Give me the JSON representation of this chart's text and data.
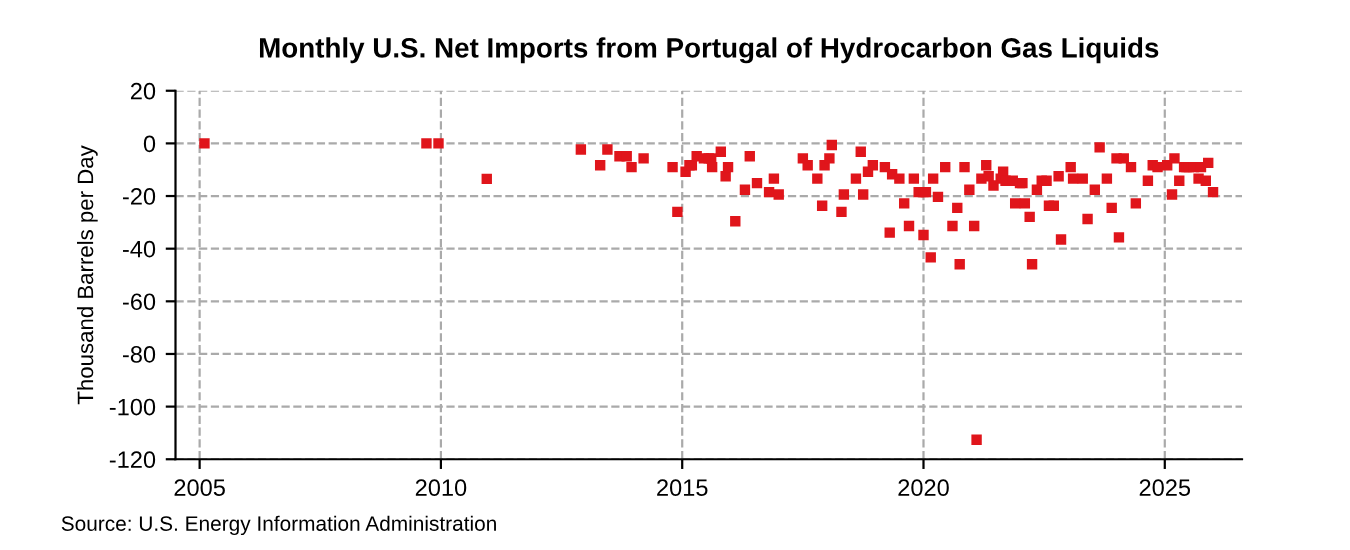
{
  "chart_data": {
    "type": "scatter",
    "title": "Monthly U.S. Net Imports from Portugal of Hydrocarbon Gas Liquids",
    "ylabel": "Thousand Barrels per Day",
    "annotations": [
      "Source: U.S. Energy Information Administration"
    ],
    "x": [
      2005.1,
      2009.7,
      2009.95,
      2010.95,
      2012.9,
      2013.3,
      2013.45,
      2013.7,
      2013.85,
      2013.95,
      2014.2,
      2014.8,
      2014.9,
      2015.07,
      2015.15,
      2015.2,
      2015.3,
      2015.45,
      2015.55,
      2015.6,
      2015.62,
      2015.8,
      2015.9,
      2015.95,
      2016.1,
      2016.3,
      2016.4,
      2016.55,
      2016.8,
      2016.9,
      2017.0,
      2017.5,
      2017.6,
      2017.8,
      2017.9,
      2017.95,
      2018.05,
      2018.1,
      2018.3,
      2018.35,
      2018.6,
      2018.7,
      2018.75,
      2018.85,
      2018.95,
      2019.2,
      2019.3,
      2019.35,
      2019.5,
      2019.6,
      2019.7,
      2019.8,
      2019.9,
      2020.0,
      2020.05,
      2020.0,
      2020.15,
      2020.2,
      2020.3,
      2020.45,
      2020.6,
      2020.7,
      2020.75,
      2020.85,
      2020.95,
      2021.05,
      2021.1,
      2021.2,
      2021.3,
      2021.35,
      2021.45,
      2021.6,
      2021.65,
      2021.7,
      2021.85,
      2021.9,
      2022.0,
      2022.05,
      2022.1,
      2022.2,
      2022.25,
      2022.35,
      2022.45,
      2022.55,
      2022.6,
      2022.7,
      2022.8,
      2022.85,
      2023.05,
      2023.1,
      2023.3,
      2023.4,
      2023.55,
      2023.65,
      2023.8,
      2023.9,
      2024.0,
      2024.05,
      2024.15,
      2024.3,
      2024.4,
      2024.65,
      2024.75,
      2024.85,
      2025.05,
      2025.15,
      2025.2,
      2025.3,
      2025.4,
      2025.45,
      2025.5,
      2025.6,
      2025.7,
      2025.75,
      2025.85,
      2025.9,
      2026.0
    ],
    "series": [
      {
        "color": "#e0151b",
        "values": [
          0,
          0,
          0,
          -13.5,
          -2.3,
          -8.3,
          -2.3,
          -4.9,
          -4.9,
          -9,
          -5.7,
          -9,
          -26,
          -10.8,
          -8.3,
          -8.3,
          -4.9,
          -5.7,
          -5.7,
          -5.7,
          -9,
          -3.2,
          -12.5,
          -9,
          -29.6,
          -17.6,
          -4.9,
          -15.1,
          -18.5,
          -13.4,
          -19.4,
          -5.7,
          -8.3,
          -13.4,
          -23.7,
          -8.3,
          -5.7,
          -0.6,
          -26,
          -19.4,
          -13.4,
          -3.2,
          -19.4,
          -10.8,
          -8.3,
          -9,
          -33.9,
          -11.7,
          -13.4,
          -22.8,
          -31.4,
          -13.4,
          -18.5,
          -18.5,
          -18.5,
          -34.8,
          -43.3,
          -13.4,
          -20.3,
          -9,
          -31.4,
          -24.5,
          -45.9,
          -9,
          -17.6,
          -31.4,
          -112.6,
          -13.4,
          -8.3,
          -12.5,
          -16,
          -13.4,
          -10.8,
          -14.2,
          -14.2,
          -22.8,
          -15.1,
          -15.1,
          -22.8,
          -27.9,
          -45.9,
          -17.6,
          -14.2,
          -14.2,
          -23.7,
          -23.7,
          -12.5,
          -36.5,
          -9,
          -13.4,
          -13.4,
          -28.7,
          -17.6,
          -1.5,
          -13.4,
          -24.5,
          -5.7,
          -35.7,
          -5.7,
          -9,
          -22.8,
          -14.2,
          -8.3,
          -9,
          -8.3,
          -19.4,
          -5.7,
          -14.2,
          -9,
          -9,
          -9,
          -9,
          -13.4,
          -9,
          -14.2,
          -7.4,
          -18.5
        ]
      }
    ],
    "xlim": [
      2004.5,
      2026.6
    ],
    "xticks": [
      2005,
      2010,
      2015,
      2020,
      2025
    ],
    "ylim": [
      -120,
      20
    ],
    "yticks": [
      -120,
      -100,
      -80,
      -60,
      -40,
      -20,
      0,
      20
    ],
    "grid": true,
    "marker": "square"
  }
}
